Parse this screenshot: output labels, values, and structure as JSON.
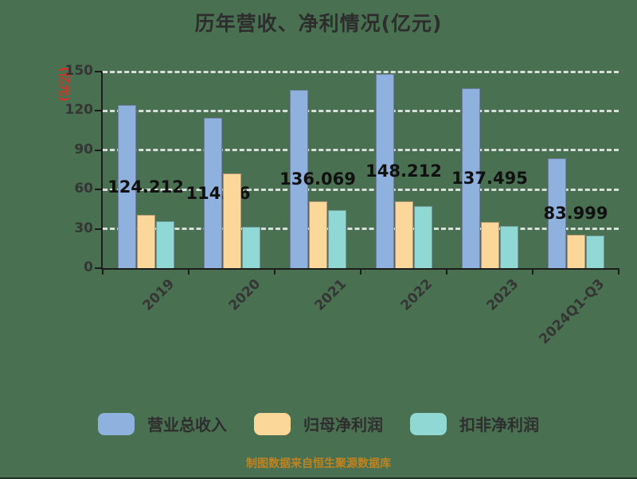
{
  "title": "历年营收、净利情况(亿元)",
  "y_axis_unit_label": "(亿元)",
  "footer_note": "制图数据来自恒生聚源数据库",
  "colors": {
    "background": "#4A7052",
    "revenue_bar": "#8FB1DE",
    "net_profit_bar": "#FBD89A",
    "deducted_net_profit_bar": "#90D8D3",
    "axis": "#1c1c1c",
    "gridline": "#F2F2F2",
    "title_text": "#2d2d2d",
    "unit_label_red": "#cf3326",
    "footer_text": "#bf831f"
  },
  "chart_data": {
    "type": "bar",
    "title": "历年营收、净利情况(亿元)",
    "ylabel": "(亿元)",
    "categories": [
      "2019",
      "2020",
      "2021",
      "2022",
      "2023",
      "2024Q1-Q3"
    ],
    "series": [
      {
        "key": "revenue",
        "name": "营业总收入",
        "color": "#8FB1DE",
        "values": [
          124.212,
          114.76,
          136.069,
          148.212,
          137.495,
          83.999
        ],
        "labels": [
          "124.212",
          "114.76",
          "136.069",
          "148.212",
          "137.495",
          "83.999"
        ]
      },
      {
        "key": "net-profit",
        "name": "归母净利润",
        "color": "#FBD89A",
        "values": [
          40.9,
          72.0,
          51.0,
          51.0,
          35.4,
          25.8
        ]
      },
      {
        "key": "deducted-net-profit",
        "name": "扣非净利润",
        "color": "#90D8D3",
        "values": [
          36.0,
          31.8,
          44.4,
          47.4,
          32.4,
          25.2
        ]
      }
    ],
    "yticks": [
      0,
      30,
      60,
      90,
      120,
      150
    ],
    "ylim": [
      0,
      150
    ],
    "grid": "horizontal dashed",
    "legend_position": "bottom",
    "label_dx": [
      0,
      -17,
      0,
      0,
      0,
      0
    ]
  }
}
